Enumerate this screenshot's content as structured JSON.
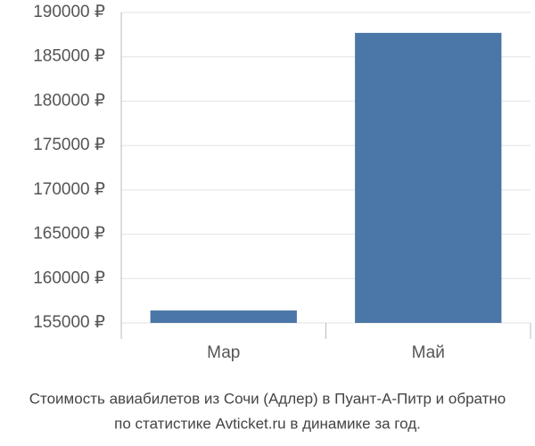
{
  "chart_data": {
    "type": "bar",
    "title": "Стоимость авиабилетов из Сочи (Адлер) в Пуант-А-Питр и обратно",
    "subtitle": "по статистике Avticket.ru в динамике за год.",
    "categories": [
      "Мар",
      "Май"
    ],
    "values": [
      156400,
      187700
    ],
    "color": "#4a76a8",
    "ylim": [
      155000,
      190000
    ],
    "yticks": [
      {
        "value": 155000,
        "label": "155000 ₽"
      },
      {
        "value": 160000,
        "label": "160000 ₽"
      },
      {
        "value": 165000,
        "label": "165000 ₽"
      },
      {
        "value": 170000,
        "label": "170000 ₽"
      },
      {
        "value": 175000,
        "label": "175000 ₽"
      },
      {
        "value": 180000,
        "label": "180000 ₽"
      },
      {
        "value": 185000,
        "label": "185000 ₽"
      },
      {
        "value": 190000,
        "label": "190000 ₽"
      }
    ],
    "grid": true
  }
}
